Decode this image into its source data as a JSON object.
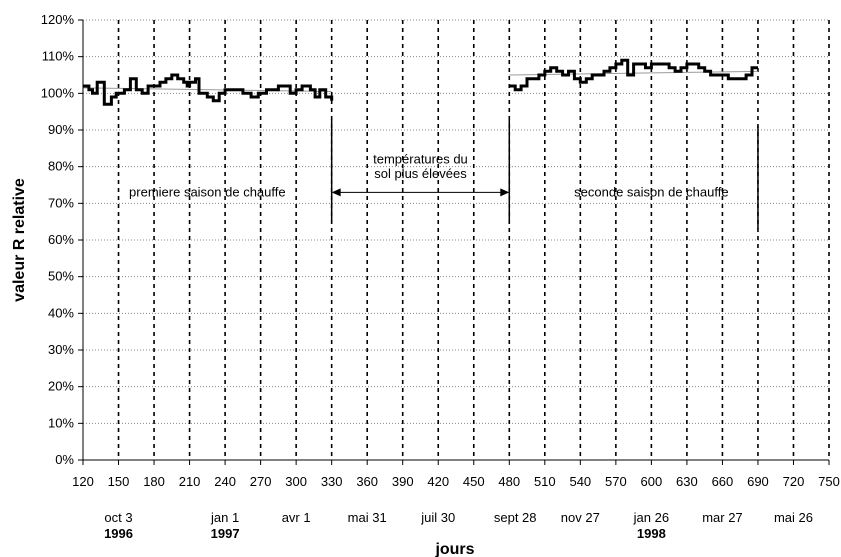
{
  "chart_data": {
    "type": "line",
    "title": "",
    "xlabel": "jours",
    "ylabel": "valeur R relative",
    "xlim": [
      120,
      750
    ],
    "ylim": [
      0,
      120
    ],
    "x_ticks": [
      120,
      150,
      180,
      210,
      240,
      270,
      300,
      330,
      360,
      390,
      420,
      450,
      480,
      510,
      540,
      570,
      600,
      630,
      660,
      690,
      720,
      750
    ],
    "y_ticks": [
      0,
      10,
      20,
      30,
      40,
      50,
      60,
      70,
      80,
      90,
      100,
      110,
      120
    ],
    "y_tick_labels": [
      "0%",
      "10%",
      "20%",
      "30%",
      "40%",
      "50%",
      "60%",
      "70%",
      "80%",
      "90%",
      "100%",
      "110%",
      "120%"
    ],
    "grid": {
      "horizontal": "dotted",
      "vertical": "dashed"
    },
    "date_labels": [
      {
        "x": 150,
        "label": "oct 3",
        "year": "1996"
      },
      {
        "x": 240,
        "label": "jan 1",
        "year": "1997"
      },
      {
        "x": 300,
        "label": "avr 1",
        "year": ""
      },
      {
        "x": 360,
        "label": "mai 31",
        "year": ""
      },
      {
        "x": 420,
        "label": "juil 30",
        "year": ""
      },
      {
        "x": 485,
        "label": "sept 28",
        "year": ""
      },
      {
        "x": 540,
        "label": "nov 27",
        "year": ""
      },
      {
        "x": 600,
        "label": "jan 26",
        "year": "1998"
      },
      {
        "x": 660,
        "label": "mar 27",
        "year": ""
      },
      {
        "x": 720,
        "label": "mai 26",
        "year": ""
      }
    ],
    "series": [
      {
        "name": "",
        "segments": [
          [
            [
              120,
              102
            ],
            [
              125,
              102
            ],
            [
              125,
              101
            ],
            [
              128,
              101
            ],
            [
              128,
              100
            ],
            [
              132,
              100
            ],
            [
              132,
              103
            ],
            [
              138,
              103
            ],
            [
              138,
              97
            ],
            [
              144,
              97
            ],
            [
              144,
              99
            ],
            [
              148,
              99
            ],
            [
              148,
              100
            ],
            [
              155,
              100
            ],
            [
              155,
              101
            ],
            [
              160,
              101
            ],
            [
              160,
              104
            ],
            [
              165,
              104
            ],
            [
              165,
              101
            ],
            [
              170,
              101
            ],
            [
              170,
              100
            ],
            [
              175,
              100
            ],
            [
              175,
              102
            ],
            [
              185,
              102
            ],
            [
              185,
              103
            ],
            [
              190,
              103
            ],
            [
              190,
              104
            ],
            [
              195,
              104
            ],
            [
              195,
              105
            ],
            [
              200,
              105
            ],
            [
              200,
              104
            ],
            [
              205,
              104
            ],
            [
              205,
              103
            ],
            [
              208,
              103
            ],
            [
              208,
              102
            ],
            [
              210,
              102
            ],
            [
              210,
              103
            ],
            [
              215,
              103
            ],
            [
              215,
              104
            ],
            [
              218,
              104
            ],
            [
              218,
              100
            ],
            [
              225,
              100
            ],
            [
              225,
              99
            ],
            [
              230,
              99
            ],
            [
              230,
              98
            ],
            [
              235,
              98
            ],
            [
              235,
              100
            ],
            [
              240,
              100
            ],
            [
              240,
              101
            ],
            [
              255,
              101
            ],
            [
              255,
              100
            ],
            [
              262,
              100
            ],
            [
              262,
              99
            ],
            [
              268,
              99
            ],
            [
              268,
              100
            ],
            [
              275,
              100
            ],
            [
              275,
              101
            ],
            [
              285,
              101
            ],
            [
              285,
              102
            ],
            [
              295,
              102
            ],
            [
              295,
              100
            ],
            [
              300,
              100
            ],
            [
              300,
              101
            ],
            [
              305,
              101
            ],
            [
              305,
              102
            ],
            [
              312,
              102
            ],
            [
              312,
              101
            ],
            [
              316,
              101
            ],
            [
              316,
              99
            ],
            [
              320,
              99
            ],
            [
              320,
              101
            ],
            [
              325,
              101
            ],
            [
              325,
              99
            ],
            [
              330,
              99
            ],
            [
              330,
              98
            ]
          ],
          [
            [
              480,
              102
            ],
            [
              485,
              102
            ],
            [
              485,
              101
            ],
            [
              490,
              101
            ],
            [
              490,
              102
            ],
            [
              495,
              102
            ],
            [
              495,
              104
            ],
            [
              505,
              104
            ],
            [
              505,
              105
            ],
            [
              510,
              105
            ],
            [
              510,
              106
            ],
            [
              515,
              106
            ],
            [
              515,
              107
            ],
            [
              520,
              107
            ],
            [
              520,
              106
            ],
            [
              525,
              106
            ],
            [
              525,
              105
            ],
            [
              530,
              105
            ],
            [
              530,
              106
            ],
            [
              535,
              106
            ],
            [
              535,
              104
            ],
            [
              540,
              104
            ],
            [
              540,
              103
            ],
            [
              545,
              103
            ],
            [
              545,
              104
            ],
            [
              550,
              104
            ],
            [
              550,
              105
            ],
            [
              560,
              105
            ],
            [
              560,
              106
            ],
            [
              565,
              106
            ],
            [
              565,
              107
            ],
            [
              570,
              107
            ],
            [
              570,
              108
            ],
            [
              575,
              108
            ],
            [
              575,
              109
            ],
            [
              580,
              109
            ],
            [
              580,
              105
            ],
            [
              585,
              105
            ],
            [
              585,
              108
            ],
            [
              595,
              108
            ],
            [
              595,
              107
            ],
            [
              600,
              107
            ],
            [
              600,
              108
            ],
            [
              615,
              108
            ],
            [
              615,
              107
            ],
            [
              620,
              107
            ],
            [
              620,
              106
            ],
            [
              625,
              106
            ],
            [
              625,
              107
            ],
            [
              630,
              107
            ],
            [
              630,
              108
            ],
            [
              640,
              108
            ],
            [
              640,
              107
            ],
            [
              645,
              107
            ],
            [
              645,
              106
            ],
            [
              650,
              106
            ],
            [
              650,
              105
            ],
            [
              665,
              105
            ],
            [
              665,
              104
            ],
            [
              680,
              104
            ],
            [
              680,
              105
            ],
            [
              685,
              105
            ],
            [
              685,
              107
            ],
            [
              690,
              107
            ]
          ]
        ]
      }
    ],
    "trend_lines": [
      {
        "x": [
          120,
          330
        ],
        "y": [
          101.5,
          100.5
        ]
      },
      {
        "x": [
          480,
          690
        ],
        "y": [
          105,
          106
        ]
      }
    ],
    "markers": [
      {
        "x": 330,
        "y_from": 65,
        "y_to": 93
      },
      {
        "x": 480,
        "y_from": 65,
        "y_to": 93
      },
      {
        "x": 690,
        "y_from": 63,
        "y_to": 91
      }
    ],
    "annotations": [
      {
        "text": "premiere saison de chauffe",
        "x": 225,
        "y": 73
      },
      {
        "text": "températures du",
        "x": 405,
        "y": 82
      },
      {
        "text": "sol plus élevées",
        "x": 405,
        "y": 78
      },
      {
        "text": "seconde saison de chauffe",
        "x": 600,
        "y": 73
      }
    ],
    "arrow": {
      "x_from": 330,
      "x_to": 480,
      "y": 73
    }
  }
}
